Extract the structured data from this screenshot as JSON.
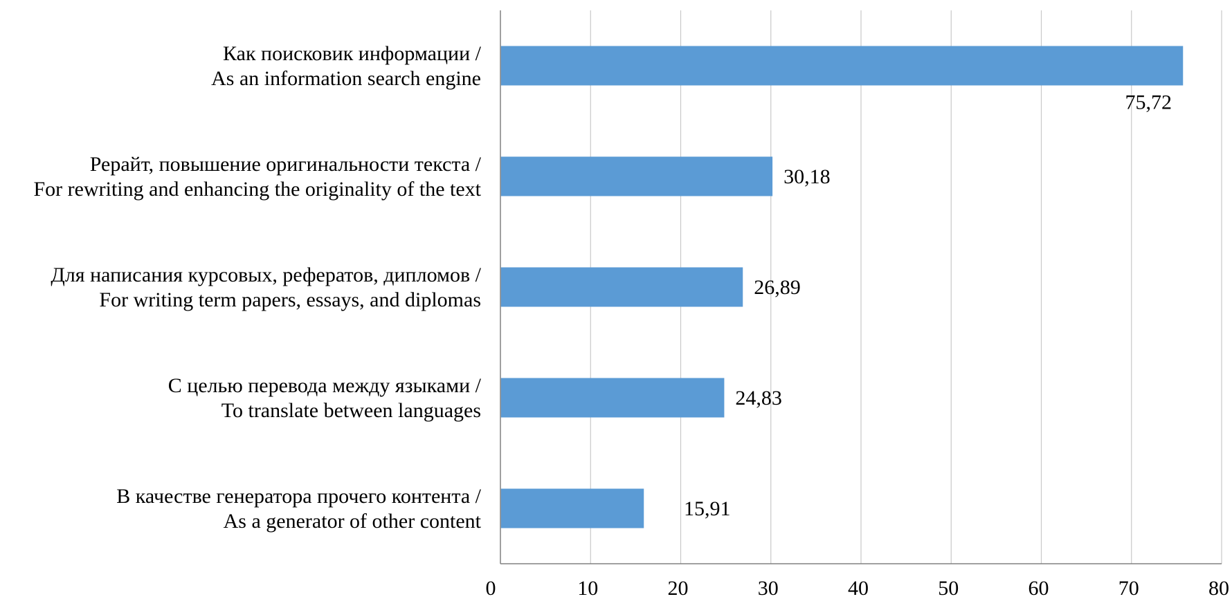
{
  "chart_data": {
    "type": "bar",
    "orientation": "horizontal",
    "categories": [
      [
        "Как поисковик информации /",
        "As an information search engine"
      ],
      [
        "Рерайт, повышение оригинальности текста /",
        "For rewriting and enhancing the originality of the text"
      ],
      [
        "Для написания курсовых, рефератов, дипломов /",
        "For writing term papers, essays, and diplomas"
      ],
      [
        "С целью перевода между языками /",
        "To translate between languages"
      ],
      [
        "В качестве генератора прочего контента /",
        "As a generator of other content"
      ]
    ],
    "values": [
      75.72,
      30.18,
      26.89,
      24.83,
      15.91
    ],
    "value_labels": [
      "75,72",
      "30,18",
      "26,89",
      "24,83",
      "15,91"
    ],
    "xlim": [
      0,
      80
    ],
    "xticks": [
      0,
      10,
      20,
      30,
      40,
      50,
      60,
      70,
      80
    ],
    "grid": true,
    "bar_color": "#5b9bd5",
    "grid_color": "#c8c8c8",
    "axis_color": "#808080",
    "title": "",
    "xlabel": "",
    "ylabel": ""
  }
}
